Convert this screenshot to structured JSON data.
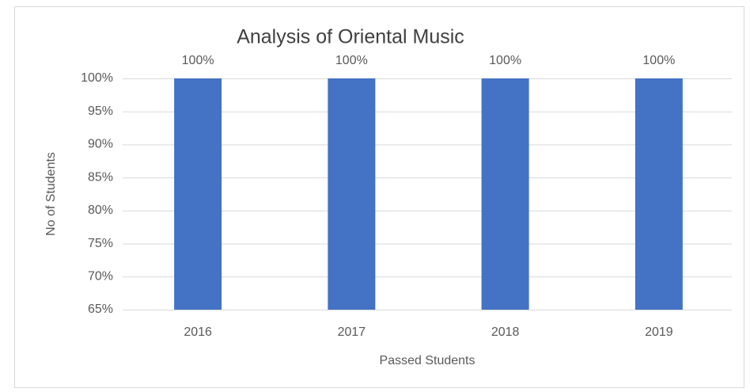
{
  "chart_data": {
    "type": "bar",
    "title": "Analysis of Oriental Music",
    "x_label": "Passed Students",
    "y_label": "No of Students",
    "categories": [
      "2016",
      "2017",
      "2018",
      "2019"
    ],
    "values": [
      100,
      100,
      100,
      100
    ],
    "value_labels": [
      "100%",
      "100%",
      "100%",
      "100%"
    ],
    "color": "#4472c4",
    "ylim": [
      65,
      100
    ],
    "yticks": [
      {
        "value": 65,
        "label": "65%"
      },
      {
        "value": 70,
        "label": "70%"
      },
      {
        "value": 75,
        "label": "75%"
      },
      {
        "value": 80,
        "label": "80%"
      },
      {
        "value": 85,
        "label": "85%"
      },
      {
        "value": 90,
        "label": "90%"
      },
      {
        "value": 95,
        "label": "95%"
      },
      {
        "value": 100,
        "label": "100%"
      }
    ],
    "grid": true
  }
}
